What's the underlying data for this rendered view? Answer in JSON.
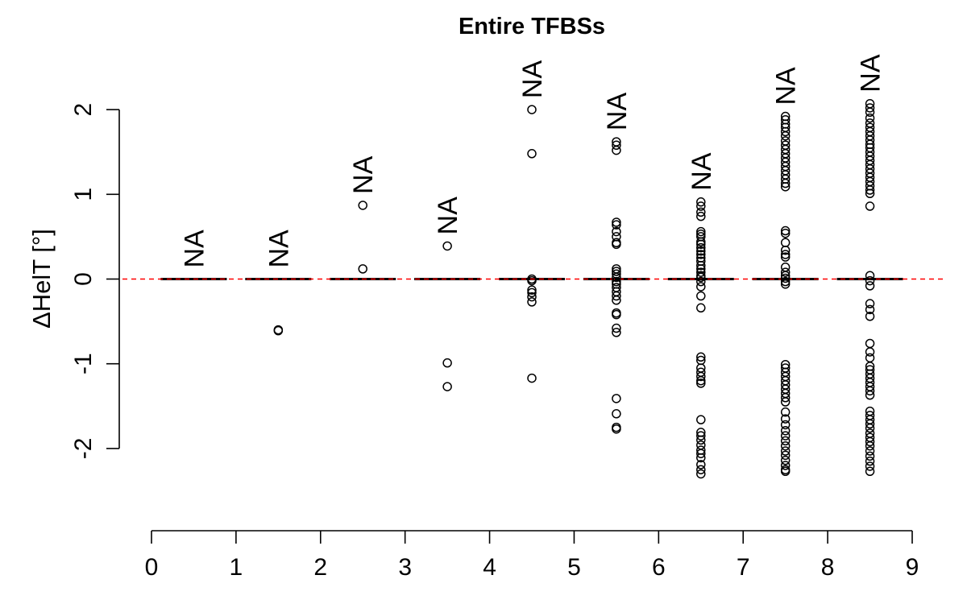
{
  "chart_data": {
    "type": "boxplot",
    "title": "Entire TFBSs",
    "xlabel": "",
    "ylabel": "ΔHelT [°]",
    "xlim": [
      0,
      9
    ],
    "ylim": [
      -2.9,
      2.55
    ],
    "x_ticks": [
      0,
      1,
      2,
      3,
      4,
      5,
      6,
      7,
      8,
      9
    ],
    "y_ticks": [
      -2,
      -1,
      0,
      1,
      2
    ],
    "y_tick_labels": [
      "-2",
      "-1",
      "0",
      "1",
      "2"
    ],
    "reference_line": {
      "y": 0,
      "color": "#ff0000",
      "style": "dashed"
    },
    "boxes": [
      {
        "x": 0.5,
        "median": 0,
        "na_label": "NA",
        "outliers": []
      },
      {
        "x": 1.5,
        "median": 0,
        "na_label": "NA",
        "outliers": [
          -0.6,
          -0.61
        ]
      },
      {
        "x": 2.5,
        "median": 0,
        "na_label": "NA",
        "outliers": [
          0.87,
          0.12
        ]
      },
      {
        "x": 3.5,
        "median": 0,
        "na_label": "NA",
        "outliers": [
          0.39,
          -0.99,
          -1.27
        ]
      },
      {
        "x": 4.5,
        "median": 0,
        "na_label": "NA",
        "outliers": [
          2.0,
          1.48,
          0.0,
          -0.02,
          -0.13,
          -0.16,
          -0.21,
          -0.27,
          -1.17
        ]
      },
      {
        "x": 5.5,
        "median": 0,
        "na_label": "NA",
        "outliers": [
          1.62,
          1.58,
          1.52,
          0.67,
          0.64,
          0.56,
          0.5,
          0.43,
          0.41,
          0.12,
          0.09,
          0.06,
          0.02,
          -0.03,
          -0.06,
          -0.1,
          -0.15,
          -0.2,
          -0.25,
          -0.4,
          -0.42,
          -0.58,
          -0.63,
          -1.41,
          -1.59,
          -1.75,
          -1.77
        ]
      },
      {
        "x": 6.5,
        "median": 0,
        "na_label": "NA",
        "outliers": [
          0.91,
          0.86,
          0.79,
          0.74,
          0.56,
          0.53,
          0.5,
          0.44,
          0.41,
          0.37,
          0.33,
          0.29,
          0.25,
          0.21,
          0.16,
          0.12,
          0.08,
          0.04,
          0.02,
          -0.03,
          -0.09,
          -0.2,
          -0.34,
          -0.92,
          -0.96,
          -1.05,
          -1.1,
          -1.15,
          -1.2,
          -1.23,
          -1.66,
          -1.81,
          -1.85,
          -1.9,
          -1.96,
          -2.02,
          -2.06,
          -2.11,
          -2.19,
          -2.25,
          -2.3
        ]
      },
      {
        "x": 7.5,
        "median": 0,
        "na_label": "NA",
        "outliers": [
          1.92,
          1.88,
          1.83,
          1.79,
          1.74,
          1.69,
          1.63,
          1.58,
          1.53,
          1.48,
          1.43,
          1.38,
          1.33,
          1.28,
          1.23,
          1.18,
          1.13,
          1.09,
          0.57,
          0.54,
          0.43,
          0.34,
          0.29,
          0.26,
          0.14,
          0.08,
          0.04,
          0.01,
          -0.03,
          -0.06,
          -1.01,
          -1.05,
          -1.1,
          -1.15,
          -1.2,
          -1.25,
          -1.3,
          -1.35,
          -1.4,
          -1.45,
          -1.57,
          -1.65,
          -1.72,
          -1.79,
          -1.85,
          -1.91,
          -1.97,
          -2.03,
          -2.08,
          -2.14,
          -2.2,
          -2.25,
          -2.27
        ]
      },
      {
        "x": 8.5,
        "median": 0,
        "na_label": "NA",
        "outliers": [
          2.07,
          2.02,
          1.97,
          1.9,
          1.84,
          1.79,
          1.74,
          1.69,
          1.64,
          1.59,
          1.55,
          1.5,
          1.45,
          1.4,
          1.35,
          1.3,
          1.25,
          1.2,
          1.15,
          1.1,
          1.05,
          1.01,
          0.86,
          0.04,
          -0.02,
          -0.08,
          -0.29,
          -0.36,
          -0.44,
          -0.76,
          -0.86,
          -0.93,
          -1.03,
          -1.07,
          -1.12,
          -1.17,
          -1.22,
          -1.27,
          -1.32,
          -1.37,
          -1.56,
          -1.61,
          -1.66,
          -1.71,
          -1.76,
          -1.82,
          -1.87,
          -1.92,
          -1.97,
          -2.03,
          -2.09,
          -2.15,
          -2.21,
          -2.27
        ]
      }
    ]
  }
}
